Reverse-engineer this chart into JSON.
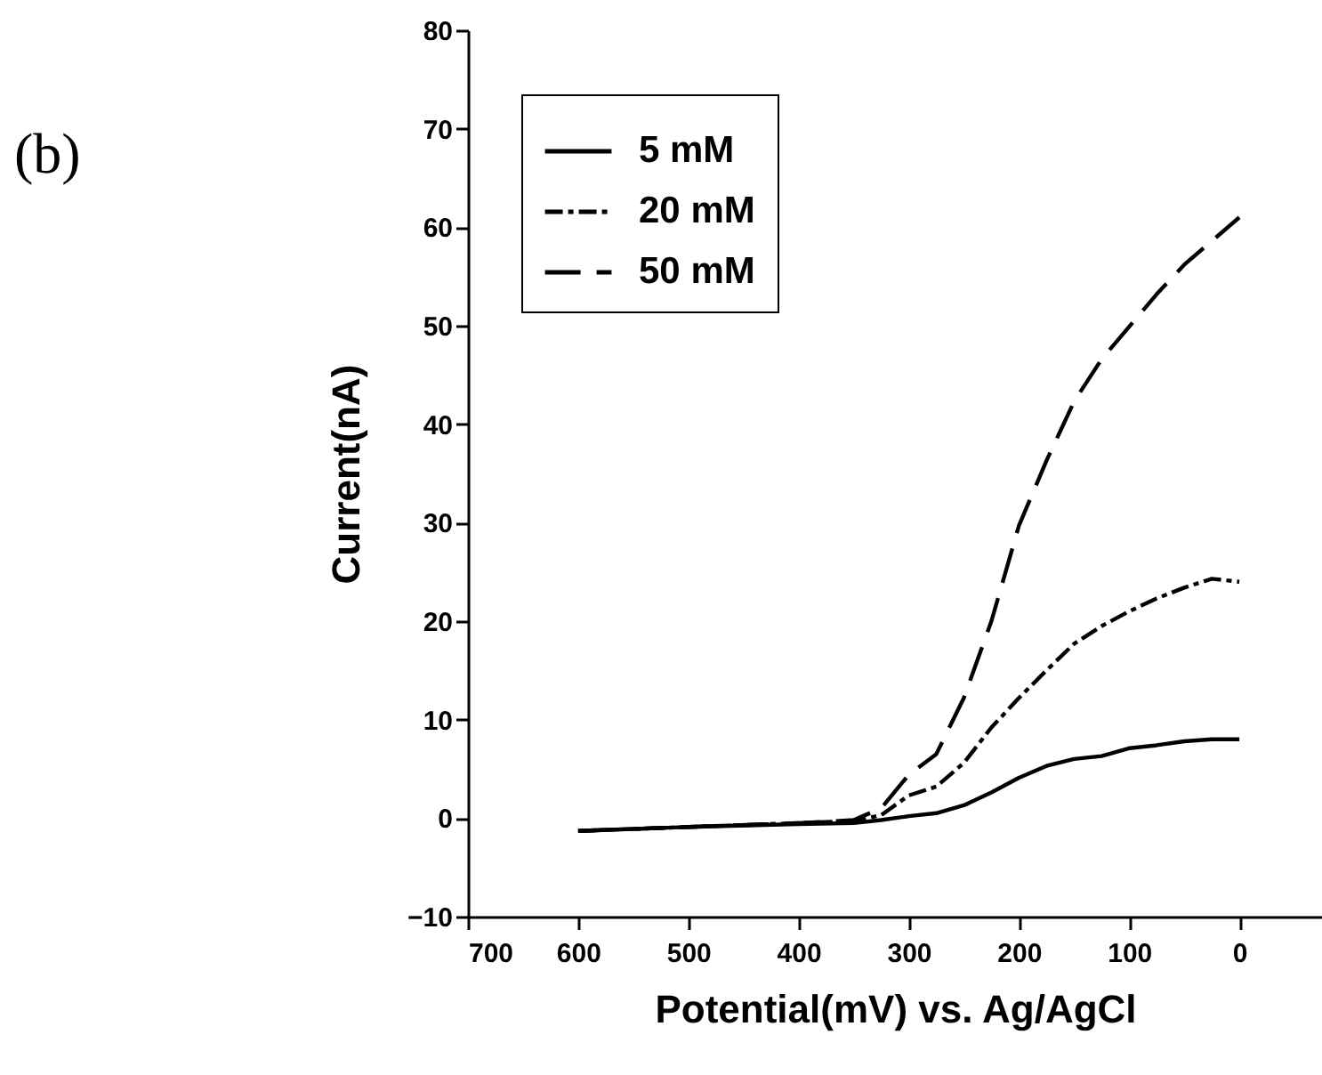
{
  "chart_data": {
    "type": "line",
    "xlabel": "Potential(mV) vs. Ag/AgCl",
    "ylabel": "Current(nA)",
    "annotations": [
      "(b)"
    ],
    "xlim": [
      700,
      -75
    ],
    "xticks": [
      700,
      600,
      500,
      400,
      300,
      200,
      100,
      0
    ],
    "ylim": [
      -10,
      80
    ],
    "yticks": [
      -10,
      0,
      10,
      20,
      30,
      40,
      50,
      60,
      70,
      80
    ],
    "grid": false,
    "legend": "top left",
    "marker": "none",
    "x": [
      600,
      500,
      400,
      350,
      325,
      300,
      275,
      250,
      225,
      200,
      175,
      150,
      125,
      100,
      75,
      50,
      25,
      0
    ],
    "series": [
      {
        "name": "5 mM",
        "color": "#000000",
        "line_style": "solid",
        "values": [
          -1.3,
          -0.9,
          -0.6,
          -0.5,
          -0.2,
          0.2,
          0.5,
          1.3,
          2.6,
          4.1,
          5.3,
          6,
          6.3,
          7.1,
          7.4,
          7.8,
          8,
          8
        ]
      },
      {
        "name": "20 mM",
        "color": "#000000",
        "line_style": "dashdot",
        "values": [
          -1.3,
          -0.9,
          -0.5,
          -0.3,
          0.3,
          2.3,
          3.2,
          5.6,
          9.2,
          12.2,
          15,
          17.7,
          19.5,
          21,
          22.3,
          23.4,
          24.3,
          24
        ]
      },
      {
        "name": "50 mM",
        "color": "#000000",
        "line_style": "dashed",
        "values": [
          -1.3,
          -0.9,
          -0.5,
          -0.2,
          1,
          4.4,
          6.5,
          12.2,
          20,
          29.7,
          36.3,
          42.3,
          46.6,
          49.9,
          53.2,
          56.2,
          58.6,
          61
        ]
      }
    ]
  }
}
